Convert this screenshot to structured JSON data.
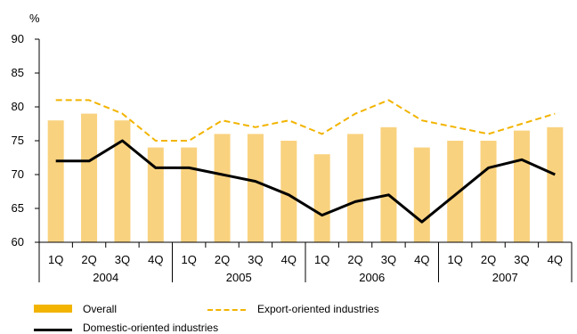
{
  "chart_data": {
    "type": "bar",
    "ylabel": "%",
    "ylim": [
      60,
      90
    ],
    "yticks": [
      60,
      65,
      70,
      75,
      80,
      85,
      90
    ],
    "grid": false,
    "quarters": [
      "1Q",
      "2Q",
      "3Q",
      "4Q",
      "1Q",
      "2Q",
      "3Q",
      "4Q",
      "1Q",
      "2Q",
      "3Q",
      "4Q",
      "1Q",
      "2Q",
      "3Q",
      "4Q"
    ],
    "years": [
      "2004",
      "2005",
      "2006",
      "2007"
    ],
    "series": [
      {
        "name": "Overall",
        "kind": "bar",
        "color": "#F9D27F",
        "values": [
          78,
          79,
          78,
          74,
          74,
          76,
          76,
          75,
          73,
          76,
          77,
          74,
          75,
          75,
          76.5,
          77
        ]
      },
      {
        "name": "Export-oriented industries",
        "kind": "line-dashed",
        "color": "#F2B400",
        "values": [
          81,
          81,
          79,
          75,
          75,
          78,
          77,
          78,
          76,
          79,
          81,
          78,
          77,
          76,
          77.5,
          79
        ]
      },
      {
        "name": "Domestic-oriented industries",
        "kind": "line",
        "color": "#000000",
        "values": [
          72,
          72,
          75,
          71,
          71,
          70,
          69,
          67,
          64,
          66,
          67,
          63,
          67,
          71,
          72.2,
          70
        ]
      }
    ],
    "legend_position": "bottom"
  }
}
